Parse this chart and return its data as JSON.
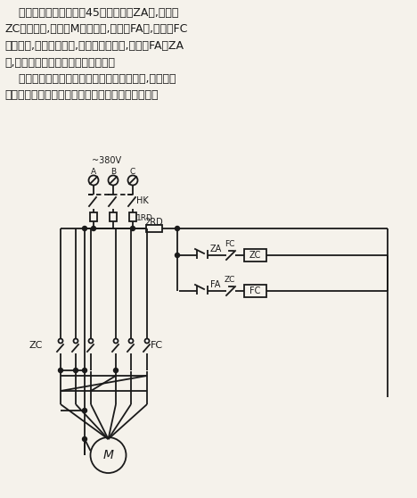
{
  "bg_color": "#f5f2eb",
  "line_color": "#1a1a1a",
  "text_color": "#1a1a1a",
  "para1": "    可逆点动控制线路如图45所示。当按ZA时,接触器",
  "para2": "ZC得电吸合,电动机M正向转动,当按下FA时,接触器FC",
  "para3": "得电吸合,电源相序改变,电动机反向转动,当松开FA或ZA",
  "para4": "时,电动机停转实现了可逆点动要求。",
  "para5": "    为了防止两个接触器同时接通造成两相短路,在两个线",
  "para6": "圈回路中各串一个对方的常闭辅助触点作联锁保护。"
}
